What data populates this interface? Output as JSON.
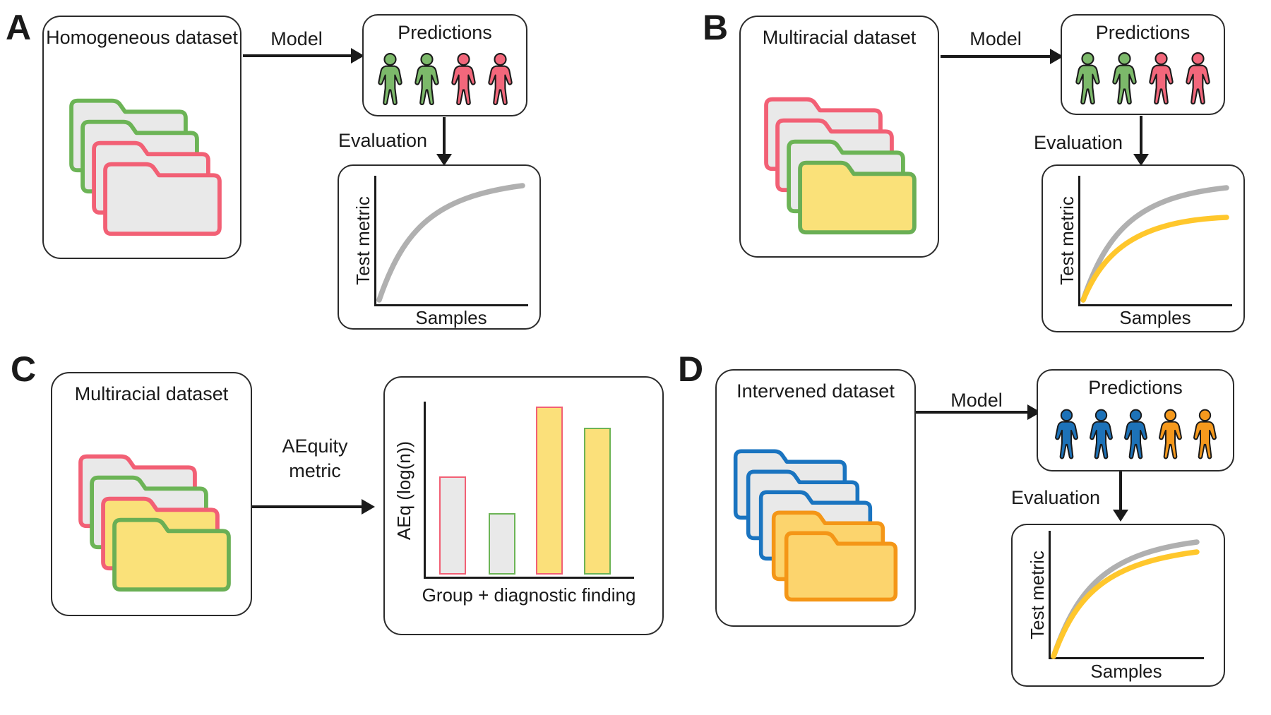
{
  "figure": {
    "panel_a": {
      "letter": "A",
      "dataset_title": "Homogeneous dataset",
      "model_label": "Model",
      "predictions_title": "Predictions",
      "evaluation_label": "Evaluation",
      "folders": [
        {
          "name": "green-folder",
          "outline": "#6cb456",
          "fill": "#e9e9e9"
        },
        {
          "name": "green-folder",
          "outline": "#6cb456",
          "fill": "#e9e9e9"
        },
        {
          "name": "red-folder",
          "outline": "#f26075",
          "fill": "#e9e9e9"
        },
        {
          "name": "red-folder",
          "outline": "#f26075",
          "fill": "#e9e9e9"
        }
      ],
      "people": [
        {
          "name": "green-person",
          "fill": "#7cb96a"
        },
        {
          "name": "green-person",
          "fill": "#7cb96a"
        },
        {
          "name": "red-person",
          "fill": "#f2677b"
        },
        {
          "name": "red-person",
          "fill": "#f2677b"
        }
      ],
      "chart": {
        "type": "line",
        "ylabel": "Test metric",
        "xlabel": "Samples",
        "curves": [
          {
            "name": "overall-learning-curve",
            "color": "#b0b0b0",
            "relative_end": 0.93
          }
        ]
      }
    },
    "panel_b": {
      "letter": "B",
      "dataset_title": "Multiracial dataset",
      "model_label": "Model",
      "predictions_title": "Predictions",
      "evaluation_label": "Evaluation",
      "folders": [
        {
          "name": "red-folder",
          "outline": "#f26075",
          "fill": "#e9e9e9"
        },
        {
          "name": "red-folder",
          "outline": "#f26075",
          "fill": "#e9e9e9"
        },
        {
          "name": "green-folder",
          "outline": "#6cb456",
          "fill": "#e9e9e9"
        },
        {
          "name": "green-yellow-folder",
          "outline": "#6aaf55",
          "fill": "#fae179"
        }
      ],
      "people": [
        {
          "name": "green-person",
          "fill": "#7cb96a"
        },
        {
          "name": "green-person",
          "fill": "#7cb96a"
        },
        {
          "name": "red-person",
          "fill": "#f2677b"
        },
        {
          "name": "red-person",
          "fill": "#f2677b"
        }
      ],
      "chart": {
        "type": "line",
        "ylabel": "Test metric",
        "xlabel": "Samples",
        "curves": [
          {
            "name": "majority-learning-curve",
            "color": "#b0b0b0",
            "relative_end": 0.93
          },
          {
            "name": "minority-learning-curve",
            "color": "#ffc72c",
            "relative_end": 0.68
          }
        ]
      }
    },
    "panel_c": {
      "letter": "C",
      "dataset_title": "Multiracial dataset",
      "metric_label": "AEquity metric",
      "folders": [
        {
          "name": "red-folder",
          "outline": "#f26075",
          "fill": "#e9e9e9"
        },
        {
          "name": "green-folder",
          "outline": "#6cb456",
          "fill": "#e9e9e9"
        },
        {
          "name": "red-yellow-folder",
          "outline": "#f26075",
          "fill": "#fae179"
        },
        {
          "name": "green-yellow-folder",
          "outline": "#6aaf55",
          "fill": "#fae179"
        }
      ],
      "bar_chart": {
        "type": "bar",
        "ylabel": "AEq (log(n))",
        "xlabel": "Group + diagnostic finding",
        "bars": [
          {
            "name": "red-gray-bar",
            "outline": "#f26075",
            "fill": "#e9e9e9",
            "value": 0.56
          },
          {
            "name": "green-gray-bar",
            "outline": "#6cb456",
            "fill": "#e9e9e9",
            "value": 0.35
          },
          {
            "name": "red-yellow-bar",
            "outline": "#f26075",
            "fill": "#fbe07a",
            "value": 0.96
          },
          {
            "name": "green-yellow-bar",
            "outline": "#6cb456",
            "fill": "#fbe07a",
            "value": 0.84
          }
        ]
      }
    },
    "panel_d": {
      "letter": "D",
      "dataset_title": "Intervened dataset",
      "model_label": "Model",
      "predictions_title": "Predictions",
      "evaluation_label": "Evaluation",
      "folders": [
        {
          "name": "blue-folder",
          "outline": "#1a74c0",
          "fill": "#e9e9e9"
        },
        {
          "name": "blue-folder",
          "outline": "#1a74c0",
          "fill": "#e9e9e9"
        },
        {
          "name": "blue-folder",
          "outline": "#1a74c0",
          "fill": "#e9e9e9"
        },
        {
          "name": "orange-folder",
          "outline": "#f49617",
          "fill": "#fcd46d"
        },
        {
          "name": "orange-folder",
          "outline": "#f49617",
          "fill": "#fcd46d"
        }
      ],
      "people": [
        {
          "name": "blue-person",
          "fill": "#1d72b8"
        },
        {
          "name": "blue-person",
          "fill": "#1d72b8"
        },
        {
          "name": "blue-person",
          "fill": "#1d72b8"
        },
        {
          "name": "orange-person",
          "fill": "#f5991d"
        },
        {
          "name": "orange-person",
          "fill": "#f5991d"
        }
      ],
      "chart": {
        "type": "line",
        "ylabel": "Test metric",
        "xlabel": "Samples",
        "curves": [
          {
            "name": "majority-learning-curve",
            "color": "#b0b0b0",
            "relative_end": 0.93
          },
          {
            "name": "minority-learning-curve",
            "color": "#ffc72c",
            "relative_end": 0.86
          }
        ]
      }
    }
  }
}
